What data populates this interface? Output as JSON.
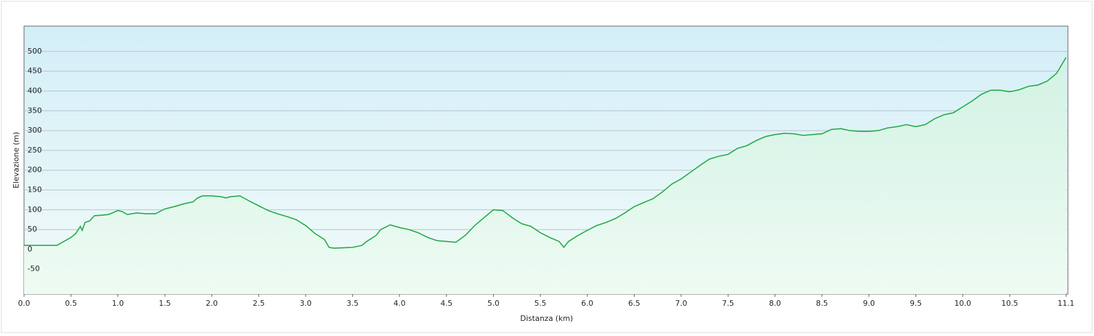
{
  "chart_data": {
    "type": "area-line",
    "xlabel": "Distanza  (km)",
    "ylabel": "Elevazione (m)",
    "color": "#22aa44",
    "grid": true,
    "xlim": [
      0,
      11.12
    ],
    "ylim": [
      -113,
      564
    ],
    "xticks": [
      {
        "value": 0,
        "label": "0.0"
      },
      0.5,
      {
        "value": 1,
        "label": "1.0"
      },
      1.5,
      {
        "value": 2,
        "label": "2.0"
      },
      2.5,
      {
        "value": 3,
        "label": "3.0"
      },
      3.5,
      {
        "value": 4,
        "label": "4.0"
      },
      4.5,
      {
        "value": 5,
        "label": "5.0"
      },
      5.5,
      {
        "value": 6,
        "label": "6.0"
      },
      6.5,
      {
        "value": 7,
        "label": "7.0"
      },
      7.5,
      {
        "value": 8,
        "label": "8.0"
      },
      8.5,
      {
        "value": 9,
        "label": "9.0"
      },
      9.5,
      {
        "value": 10,
        "label": "10.0"
      },
      10.5,
      11.1
    ],
    "yticks": [
      -50,
      0,
      50,
      100,
      150,
      200,
      250,
      300,
      350,
      400,
      450,
      500
    ],
    "x": [
      0,
      0.3,
      0.35,
      0.5,
      0.55,
      0.6,
      0.62,
      0.65,
      0.7,
      0.75,
      0.8,
      0.9,
      1.0,
      1.05,
      1.1,
      1.2,
      1.3,
      1.4,
      1.5,
      1.6,
      1.7,
      1.8,
      1.85,
      1.9,
      2.0,
      2.1,
      2.15,
      2.2,
      2.3,
      2.4,
      2.5,
      2.6,
      2.7,
      2.8,
      2.9,
      3.0,
      3.1,
      3.2,
      3.25,
      3.3,
      3.5,
      3.6,
      3.65,
      3.75,
      3.8,
      3.9,
      4.0,
      4.1,
      4.2,
      4.3,
      4.4,
      4.5,
      4.6,
      4.7,
      4.8,
      4.9,
      5.0,
      5.1,
      5.2,
      5.3,
      5.4,
      5.5,
      5.6,
      5.7,
      5.75,
      5.8,
      5.9,
      6.0,
      6.1,
      6.2,
      6.3,
      6.4,
      6.5,
      6.6,
      6.7,
      6.8,
      6.9,
      7.0,
      7.1,
      7.2,
      7.3,
      7.4,
      7.5,
      7.6,
      7.7,
      7.8,
      7.9,
      8.0,
      8.1,
      8.2,
      8.3,
      8.4,
      8.5,
      8.6,
      8.7,
      8.8,
      8.9,
      9.0,
      9.1,
      9.2,
      9.3,
      9.4,
      9.5,
      9.6,
      9.7,
      9.8,
      9.9,
      10.0,
      10.1,
      10.2,
      10.3,
      10.4,
      10.5,
      10.6,
      10.7,
      10.8,
      10.9,
      11.0,
      11.1
    ],
    "values": [
      10,
      10,
      10,
      30,
      40,
      58,
      48,
      68,
      72,
      85,
      86,
      88,
      98,
      95,
      88,
      92,
      90,
      90,
      102,
      108,
      115,
      120,
      130,
      135,
      135,
      133,
      130,
      133,
      135,
      122,
      110,
      98,
      90,
      83,
      75,
      60,
      40,
      25,
      5,
      3,
      5,
      10,
      20,
      35,
      50,
      62,
      55,
      50,
      42,
      30,
      22,
      20,
      18,
      35,
      60,
      80,
      100,
      98,
      80,
      65,
      58,
      42,
      30,
      20,
      5,
      20,
      35,
      48,
      60,
      68,
      78,
      92,
      108,
      118,
      128,
      145,
      165,
      178,
      195,
      212,
      228,
      235,
      240,
      255,
      262,
      275,
      285,
      290,
      293,
      292,
      288,
      290,
      292,
      303,
      305,
      300,
      298,
      298,
      300,
      307,
      310,
      315,
      310,
      315,
      330,
      340,
      345,
      360,
      375,
      392,
      402,
      402,
      398,
      403,
      412,
      415,
      425,
      445,
      485
    ]
  }
}
